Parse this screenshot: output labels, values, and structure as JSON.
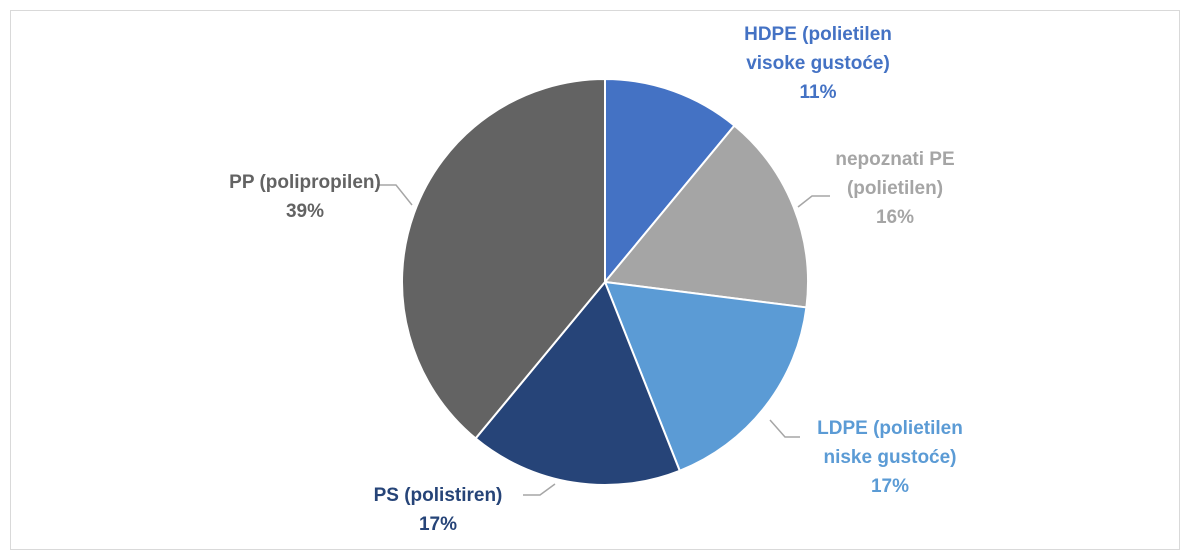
{
  "chart_data": {
    "type": "pie",
    "categories": [
      "HDPE (polietilen visoke gustoće)",
      "nepoznati PE (polietilen)",
      "LDPE (polietilen niske gustoće)",
      "PS (polistiren)",
      "PP (polipropilen)"
    ],
    "values": [
      11,
      16,
      17,
      17,
      39
    ],
    "value_labels": [
      "11%",
      "16%",
      "17%",
      "17%",
      "39%"
    ],
    "colors": [
      "#4472c4",
      "#a5a5a5",
      "#5b9bd5",
      "#264478",
      "#636363"
    ]
  }
}
